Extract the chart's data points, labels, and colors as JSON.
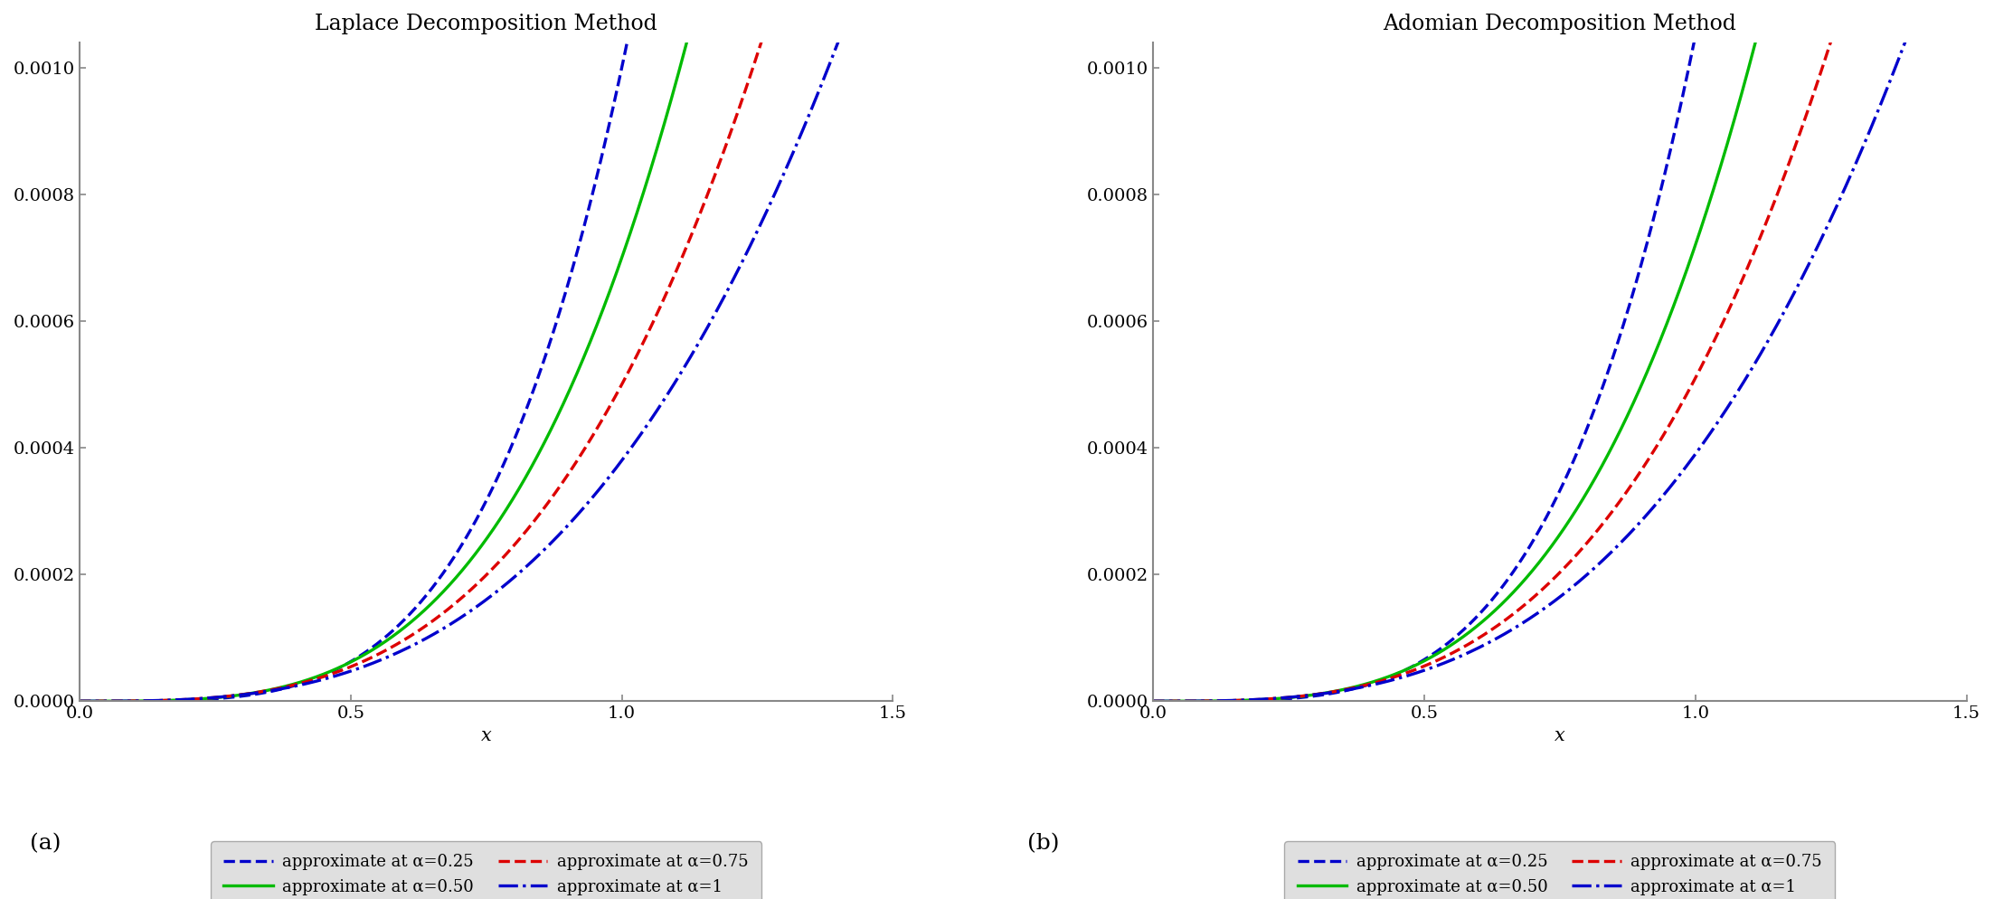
{
  "title_a": "Laplace Decomposition Method",
  "title_b": "Adomian Decomposition Method",
  "xlabel": "x",
  "xlim": [
    0,
    1.5
  ],
  "ylim": [
    0,
    0.00104
  ],
  "yticks": [
    0,
    0.0002,
    0.0004,
    0.0006,
    0.0008,
    0.001
  ],
  "xticks": [
    0,
    0.5,
    1,
    1.5
  ],
  "series_ldm": [
    {
      "alpha_label": "0.25",
      "color": "#0000cc",
      "linestyle": "dashed",
      "exponent": 4.0,
      "scale": 0.001
    },
    {
      "alpha_label": "0.50",
      "color": "#00bb00",
      "linestyle": "solid",
      "exponent": 3.5,
      "scale": 0.0007
    },
    {
      "alpha_label": "0.75",
      "color": "#dd0000",
      "linestyle": "dashed",
      "exponent": 3.2,
      "scale": 0.0005
    },
    {
      "alpha_label": "1",
      "color": "#0000cc",
      "linestyle": "dashdot",
      "exponent": 3.0,
      "scale": 0.00038
    }
  ],
  "series_adm": [
    {
      "alpha_label": "0.25",
      "color": "#0000cc",
      "linestyle": "dashed",
      "exponent": 4.0,
      "scale": 0.00105
    },
    {
      "alpha_label": "0.50",
      "color": "#00bb00",
      "linestyle": "solid",
      "exponent": 3.5,
      "scale": 0.00072
    },
    {
      "alpha_label": "0.75",
      "color": "#dd0000",
      "linestyle": "dashed",
      "exponent": 3.2,
      "scale": 0.00051
    },
    {
      "alpha_label": "1",
      "color": "#0000cc",
      "linestyle": "dashdot",
      "exponent": 3.0,
      "scale": 0.00039
    }
  ],
  "linewidth": 2.4,
  "background_color": "#ffffff",
  "legend_bg": "#d8d8d8",
  "label_a": "(a)",
  "label_b": "(b)",
  "legend_labels": [
    "approximate at α=0.25",
    "approximate at α=0.50",
    "approximate at α=0.75",
    "approximate at α=1"
  ],
  "title_fontsize": 17,
  "tick_fontsize": 14,
  "xlabel_fontsize": 15,
  "legend_fontsize": 13
}
